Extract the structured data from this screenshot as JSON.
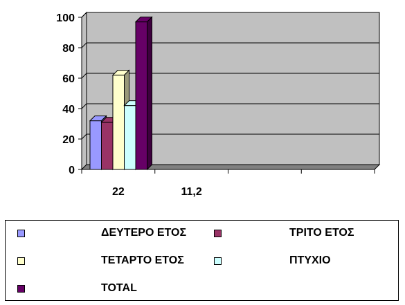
{
  "chart_data": {
    "type": "bar",
    "categories": [
      "22",
      "11,2",
      "",
      ""
    ],
    "series": [
      {
        "name": "ΔΕΥΤΕΡΟ ΕΤΟΣ",
        "values": [
          32,
          null,
          null,
          null
        ],
        "color": "#9999FF"
      },
      {
        "name": "ΤΡΙΤΟ ΕΤΟΣ",
        "values": [
          31,
          null,
          null,
          null
        ],
        "color": "#993366"
      },
      {
        "name": "ΤΕΤΑΡΤΟ ΕΤΟΣ",
        "values": [
          62,
          null,
          null,
          null
        ],
        "color": "#FFFFCC"
      },
      {
        "name": "ΠΤΥΧΙΟ",
        "values": [
          42,
          null,
          null,
          null
        ],
        "color": "#CCFFFF"
      },
      {
        "name": "TOTAL",
        "values": [
          97,
          null,
          null,
          null
        ],
        "color": "#660066"
      }
    ],
    "ylim": [
      0,
      100
    ],
    "yticks": [
      "0",
      "20",
      "40",
      "60",
      "80",
      "100"
    ],
    "grid": true,
    "legend_position": "bottom",
    "wall_color": "#C0C0C0",
    "floor_color": "#808080"
  }
}
